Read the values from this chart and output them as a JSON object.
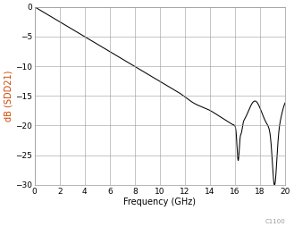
{
  "xlabel": "Frequency (GHz)",
  "ylabel": "dB (SDD21)",
  "xlim": [
    0,
    20
  ],
  "ylim": [
    -30,
    0
  ],
  "xticks": [
    0,
    2,
    4,
    6,
    8,
    10,
    12,
    14,
    16,
    18,
    20
  ],
  "yticks": [
    0,
    -5,
    -10,
    -15,
    -20,
    -25,
    -30
  ],
  "line_color": "#000000",
  "background_color": "#ffffff",
  "grid_color": "#999999",
  "ylabel_color": "#cc4400",
  "annotation": "C1100",
  "figsize": [
    3.29,
    2.54
  ],
  "dpi": 100
}
